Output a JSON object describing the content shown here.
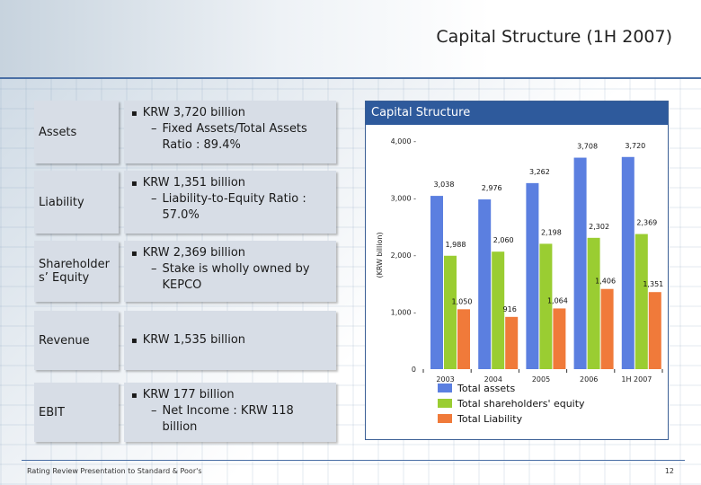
{
  "page": {
    "title": "Capital Structure (1H 2007)",
    "footer": "Rating Review Presentation to Standard & Poor's",
    "page_number": "12"
  },
  "rows": [
    {
      "label": "Assets",
      "bullet": "KRW 3,720 billion",
      "sub": "Fixed Assets/Total Assets Ratio : 89.4%"
    },
    {
      "label": "Liability",
      "bullet": "KRW 1,351 billion",
      "sub": "Liability-to-Equity Ratio : 57.0%"
    },
    {
      "label": "Shareholder s’ Equity",
      "bullet": "KRW 2,369 billion",
      "sub": "Stake is wholly owned by KEPCO"
    },
    {
      "label": "Revenue",
      "bullet": "KRW 1,535 billion",
      "sub": ""
    },
    {
      "label": "EBIT",
      "bullet": "KRW 177 billion",
      "sub": "Net Income : KRW 118 billion"
    }
  ],
  "chart_data": {
    "type": "bar",
    "title": "Capital Structure",
    "ylabel": "(KRW billion)",
    "xlabel": "",
    "ylim": [
      0,
      4000
    ],
    "yticks": [
      "4,000",
      "3,000",
      "2,000",
      "1,000",
      "0"
    ],
    "categories": [
      "2003",
      "2004",
      "2005",
      "2006",
      "1H 2007"
    ],
    "series": [
      {
        "name": "Total assets",
        "color": "#5b7fe0",
        "values": [
          3038,
          2976,
          3262,
          3708,
          3720
        ],
        "labels": [
          "3,038",
          "2,976",
          "3,262",
          "3,708",
          "3,720"
        ]
      },
      {
        "name": "Total shareholders' equity",
        "color": "#9acd32",
        "values": [
          1988,
          2060,
          2198,
          2302,
          2369
        ],
        "labels": [
          "1,988",
          "2,060",
          "2,198",
          "2,302",
          "2,369"
        ]
      },
      {
        "name": "Total Liability",
        "color": "#f07a3a",
        "values": [
          1050,
          916,
          1064,
          1406,
          1351
        ],
        "labels": [
          "1,050",
          "916",
          "1,064",
          "1,406",
          "1,351"
        ]
      }
    ],
    "legend_position": "bottom"
  }
}
